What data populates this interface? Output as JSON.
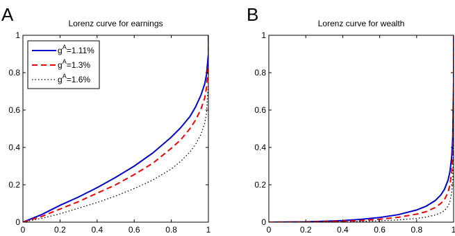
{
  "chart_data": [
    {
      "panel": "A",
      "type": "line",
      "title": "Lorenz curve for earnings",
      "xlabel": "",
      "ylabel": "",
      "xlim": [
        0,
        1
      ],
      "ylim": [
        0,
        1
      ],
      "xticks": [
        "0",
        "0.2",
        "0.4",
        "0.6",
        "0.8",
        "1"
      ],
      "yticks": [
        "0",
        "0.2",
        "0.4",
        "0.6",
        "0.8",
        "1"
      ],
      "legend": "top-left",
      "grid": false,
      "series": [
        {
          "name": "=1.11%",
          "color": "#0000cc",
          "style": "solid",
          "x": [
            0,
            0.1,
            0.2,
            0.3,
            0.4,
            0.5,
            0.6,
            0.7,
            0.8,
            0.85,
            0.9,
            0.93,
            0.96,
            0.98,
            0.99,
            1,
            1
          ],
          "y": [
            0,
            0.04,
            0.09,
            0.135,
            0.185,
            0.24,
            0.3,
            0.37,
            0.455,
            0.505,
            0.565,
            0.615,
            0.68,
            0.74,
            0.79,
            0.9,
            1
          ]
        },
        {
          "name": "=1.3%",
          "color": "#ee0000",
          "style": "dashed",
          "x": [
            0,
            0.1,
            0.2,
            0.3,
            0.4,
            0.5,
            0.6,
            0.7,
            0.8,
            0.85,
            0.9,
            0.93,
            0.96,
            0.98,
            0.99,
            1,
            1
          ],
          "y": [
            0,
            0.03,
            0.07,
            0.11,
            0.155,
            0.2,
            0.255,
            0.315,
            0.395,
            0.44,
            0.5,
            0.545,
            0.605,
            0.665,
            0.72,
            0.85,
            1
          ]
        },
        {
          "name": "=1.6%",
          "color": "#000000",
          "style": "dotted",
          "x": [
            0,
            0.1,
            0.2,
            0.3,
            0.4,
            0.5,
            0.6,
            0.7,
            0.8,
            0.85,
            0.9,
            0.93,
            0.96,
            0.98,
            0.99,
            1,
            1
          ],
          "y": [
            0,
            0.02,
            0.045,
            0.075,
            0.105,
            0.14,
            0.18,
            0.225,
            0.285,
            0.325,
            0.375,
            0.415,
            0.47,
            0.53,
            0.585,
            0.75,
            1
          ]
        }
      ]
    },
    {
      "panel": "B",
      "type": "line",
      "title": "Lorenz curve for wealth",
      "xlabel": "",
      "ylabel": "",
      "xlim": [
        0,
        1
      ],
      "ylim": [
        0,
        1
      ],
      "xticks": [
        "0",
        "0.2",
        "0.4",
        "0.6",
        "0.8",
        "1"
      ],
      "yticks": [
        "0",
        "0.2",
        "0.4",
        "0.6",
        "0.8",
        "1"
      ],
      "grid": false,
      "series": [
        {
          "name": "=1.11%",
          "color": "#0000cc",
          "style": "solid",
          "x": [
            0,
            0.2,
            0.4,
            0.5,
            0.6,
            0.7,
            0.8,
            0.85,
            0.9,
            0.93,
            0.95,
            0.97,
            0.98,
            0.99,
            0.995,
            1,
            1
          ],
          "y": [
            0,
            0.002,
            0.008,
            0.015,
            0.025,
            0.04,
            0.065,
            0.085,
            0.115,
            0.145,
            0.175,
            0.225,
            0.27,
            0.35,
            0.45,
            0.75,
            1
          ]
        },
        {
          "name": "=1.3%",
          "color": "#ee0000",
          "style": "dashed",
          "x": [
            0,
            0.2,
            0.4,
            0.5,
            0.6,
            0.7,
            0.8,
            0.85,
            0.9,
            0.93,
            0.95,
            0.97,
            0.98,
            0.99,
            0.995,
            1,
            1
          ],
          "y": [
            0,
            0.001,
            0.005,
            0.009,
            0.016,
            0.026,
            0.043,
            0.056,
            0.078,
            0.1,
            0.12,
            0.16,
            0.2,
            0.27,
            0.36,
            0.65,
            1
          ]
        },
        {
          "name": "=1.6%",
          "color": "#000000",
          "style": "dotted",
          "x": [
            0,
            0.2,
            0.4,
            0.5,
            0.6,
            0.7,
            0.8,
            0.85,
            0.9,
            0.93,
            0.95,
            0.97,
            0.98,
            0.99,
            0.995,
            1,
            1
          ],
          "y": [
            0,
            0.0005,
            0.002,
            0.004,
            0.007,
            0.012,
            0.02,
            0.027,
            0.038,
            0.05,
            0.062,
            0.085,
            0.11,
            0.16,
            0.22,
            0.45,
            1
          ]
        }
      ]
    }
  ]
}
